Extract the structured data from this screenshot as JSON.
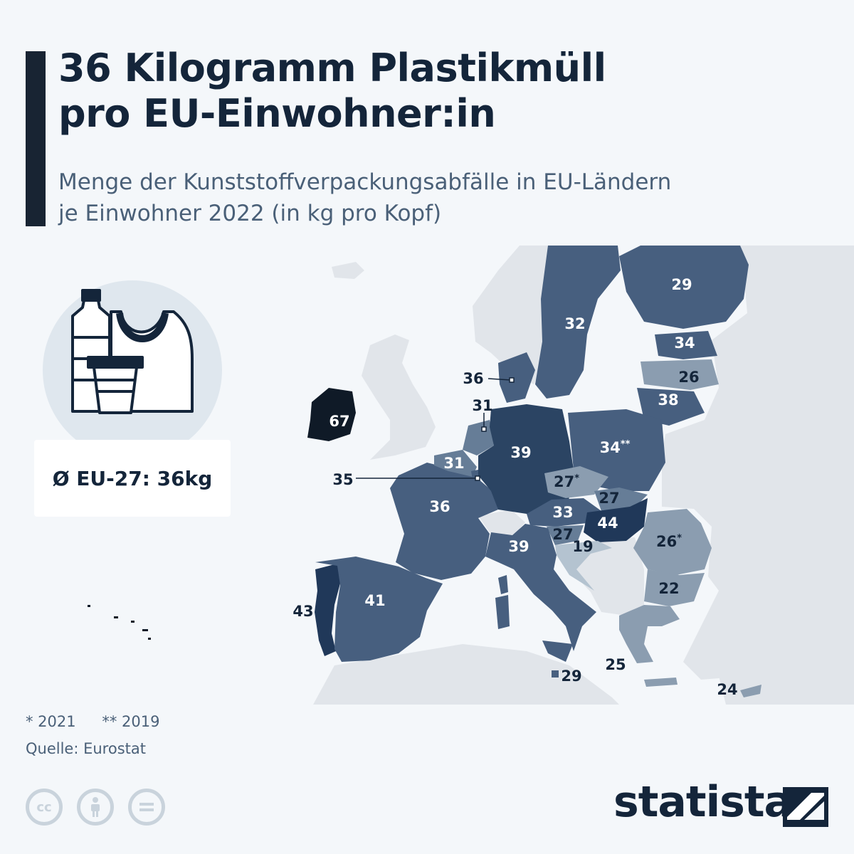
{
  "title_line1": "36 Kilogramm Plastikmüll",
  "title_line2": "pro EU-Einwohner:in",
  "subtitle_line1": "Menge der Kunststoffverpackungsabfälle in EU-Ländern",
  "subtitle_line2": "je Einwohner 2022 (in kg pro Kopf)",
  "average_label": "Ø EU-27: 36kg",
  "footnote_2021": "* 2021",
  "footnote_2019": "** 2019",
  "source": "Quelle: Eurostat",
  "brand": "statista",
  "license_icons": [
    "cc-icon",
    "person-icon",
    "equals-icon"
  ],
  "product_icons": [
    "bottle-icon",
    "bag-icon",
    "cup-icon"
  ],
  "colors": {
    "background": "#f4f7fa",
    "non_eu": "#e1e5ea",
    "very_light": "#b4c3d0",
    "light": "#8b9db0",
    "medium": "#667d97",
    "standard": "#475f7f",
    "dark": "#2b4463",
    "darker": "#203859",
    "darkest": "#0f1a27"
  },
  "map_data": {
    "unit": "kg pro Kopf",
    "eu_average": 36,
    "countries": {
      "ie": {
        "label": "67"
      },
      "pt": {
        "label": "43"
      },
      "es": {
        "label": "41"
      },
      "fr": {
        "label": "36"
      },
      "be": {
        "label": "31"
      },
      "nl": {
        "label": "31"
      },
      "lu": {
        "label": "35"
      },
      "de": {
        "label": "39"
      },
      "dk": {
        "label": "36"
      },
      "se": {
        "label": "32"
      },
      "fi": {
        "label": "29"
      },
      "ee": {
        "label": "34"
      },
      "lv": {
        "label": "26"
      },
      "lt": {
        "label": "38"
      },
      "pl": {
        "label": "34",
        "note": "**"
      },
      "cz": {
        "label": "27",
        "note": "*"
      },
      "sk": {
        "label": "27"
      },
      "at": {
        "label": "33"
      },
      "hu": {
        "label": "44"
      },
      "si": {
        "label": "27"
      },
      "hr": {
        "label": "19"
      },
      "ro": {
        "label": "26",
        "note": "*"
      },
      "bg": {
        "label": "22"
      },
      "it": {
        "label": "39"
      },
      "mt": {
        "label": "29"
      },
      "gr": {
        "label": "25"
      },
      "cy": {
        "label": "24"
      }
    }
  }
}
